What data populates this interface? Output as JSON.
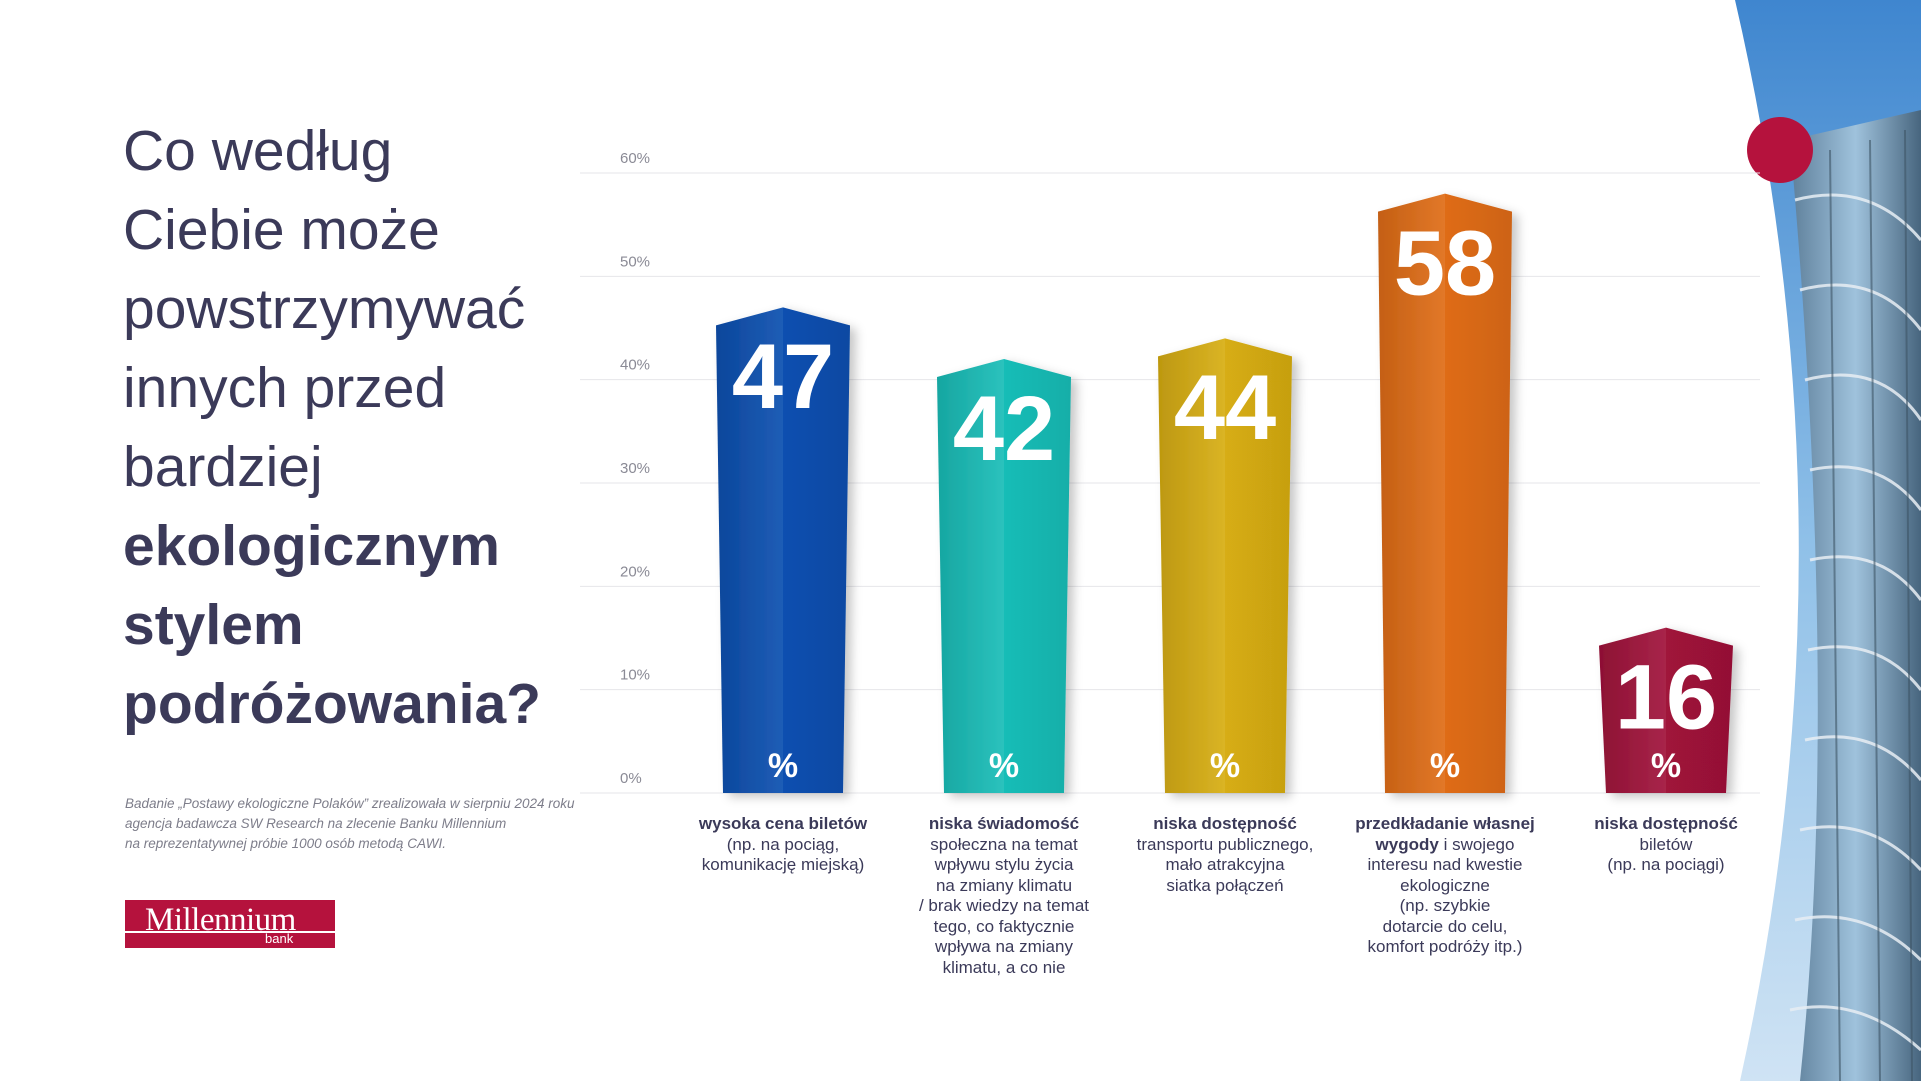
{
  "question": {
    "light_lines": [
      "Co według",
      "Ciebie może",
      "powstrzymywać",
      "innych przed",
      "bardziej"
    ],
    "bold_lines": [
      "ekologicznym",
      "stylem",
      "podróżowania?"
    ]
  },
  "survey_note": {
    "lines": [
      "Badanie „Postawy ekologiczne Polaków” zrealizowała w sierpniu 2024 roku",
      "agencja badawcza SW Research na zlecenie Banku Millennium",
      "na reprezentatywnej próbie 1000 osób metodą CAWI."
    ]
  },
  "logo": {
    "brand": "Millennium",
    "sub": "bank"
  },
  "chart_data": {
    "type": "bar",
    "categories": [
      "wysoka cena biletów (np. na pociąg, komunikację miejską)",
      "niska świadomość społeczna na temat wpływu stylu życia na zmiany klimatu / brak wiedzy na temat tego, co faktycznie wpływa na zmiany klimatu, a co nie",
      "niska dostępność transportu publicznego, mało atrakcyjna siatka połączeń",
      "przedkładanie własnej wygody i swojego interesu nad kwestie ekologiczne (np. szybkie dotarcie do celu, komfort podróży itp.)",
      "niska dostępność biletów (np. na pociągi)"
    ],
    "values": [
      47,
      42,
      44,
      58,
      16
    ],
    "value_unit": "%",
    "ylim": [
      0,
      60
    ],
    "yticks": [
      "0%",
      "10%",
      "20%",
      "30%",
      "40%",
      "50%",
      "60%"
    ],
    "grid": true,
    "colors": [
      "#0b4fb0",
      "#19bdb7",
      "#d7ad12",
      "#df6c16",
      "#a0123a"
    ]
  },
  "category_labels": [
    {
      "bold": "wysoka cena biletów",
      "rest": "",
      "lines": [
        "(np. na pociąg,",
        "komunikację miejską)"
      ]
    },
    {
      "bold": "niska świadomość",
      "rest": "",
      "lines": [
        "społeczna na temat",
        "wpływu stylu życia",
        "na zmiany klimatu",
        "/ brak wiedzy na temat",
        "tego, co faktycznie",
        "wpływa na zmiany",
        "klimatu, a co nie"
      ]
    },
    {
      "bold": "niska dostępność",
      "rest": "",
      "lines": [
        "transportu publicznego,",
        "mało atrakcyjna",
        "siatka połączeń"
      ]
    },
    {
      "bold": "przedkładanie własnej",
      "bold2": "wygody",
      "rest": " i swojego",
      "lines": [
        "interesu nad kwestie",
        "ekologiczne",
        "(np. szybkie",
        "dotarcie do celu,",
        "komfort podróży itp.)"
      ]
    },
    {
      "bold": "niska dostępność",
      "rest": "",
      "lines": [
        "biletów",
        "(np. na pociągi)"
      ]
    }
  ],
  "decor": {
    "accent_dot": "#b5123d"
  }
}
